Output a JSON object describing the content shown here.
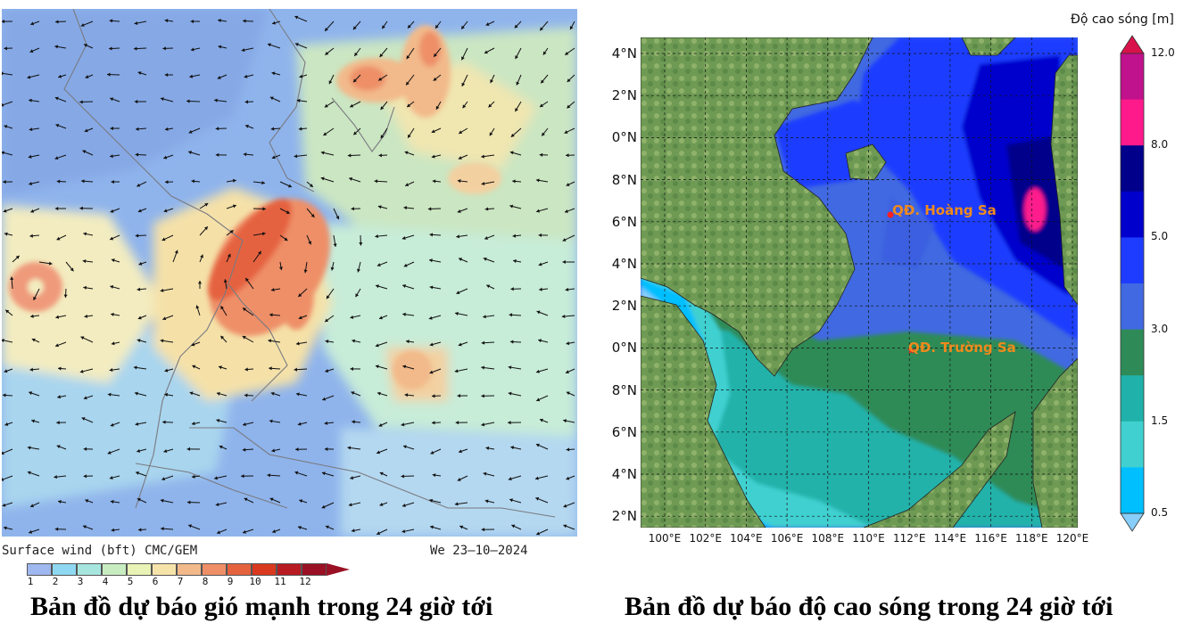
{
  "wind_panel": {
    "footer_source": "Surface wind (bft)   CMC/GEM",
    "footer_date": "We 23–10–2024",
    "scale_labels": [
      "1",
      "2",
      "3",
      "4",
      "5",
      "6",
      "7",
      "8",
      "9",
      "10",
      "11",
      "12"
    ],
    "scale_colors": [
      "#9fb8f0",
      "#8fd8f2",
      "#a7e6df",
      "#c7edc0",
      "#e9f3b5",
      "#f6e3aa",
      "#f2b98a",
      "#ee8f68",
      "#e5623f",
      "#d8391f",
      "#b81b22",
      "#9a1024"
    ],
    "caption": "Bản đồ dự báo gió mạnh trong 24 giờ tới"
  },
  "wave_panel": {
    "lat_labels": [
      "4°N",
      "2°N",
      "0°N",
      "8°N",
      "6°N",
      "4°N",
      "2°N",
      "0°N",
      "8°N",
      "6°N",
      "4°N",
      "2°N"
    ],
    "lon_labels": [
      "100°E",
      "102°E",
      "104°E",
      "106°E",
      "108°E",
      "110°E",
      "112°E",
      "114°E",
      "116°E",
      "118°E",
      "120°E"
    ],
    "places": [
      {
        "name": "QĐ. Hoàng Sa"
      },
      {
        "name": "QĐ. Trường Sa"
      }
    ],
    "place_color": "#f08a1c",
    "colorbar": {
      "title": "Độ cao sóng [m]",
      "tick_labels": [
        "12.0",
        "8.0",
        "5.0",
        "3.0",
        "1.5",
        "0.5"
      ],
      "colors_top_to_bottom": [
        "#d8124a",
        "#c0128c",
        "#ff1a8c",
        "#00008b",
        "#0000cd",
        "#1e3cff",
        "#4169e1",
        "#2e8b57",
        "#20b2aa",
        "#40d0d0",
        "#00bfff",
        "#87cefa"
      ]
    },
    "caption": "Bản đồ dự báo độ cao sóng trong 24 giờ tới"
  }
}
